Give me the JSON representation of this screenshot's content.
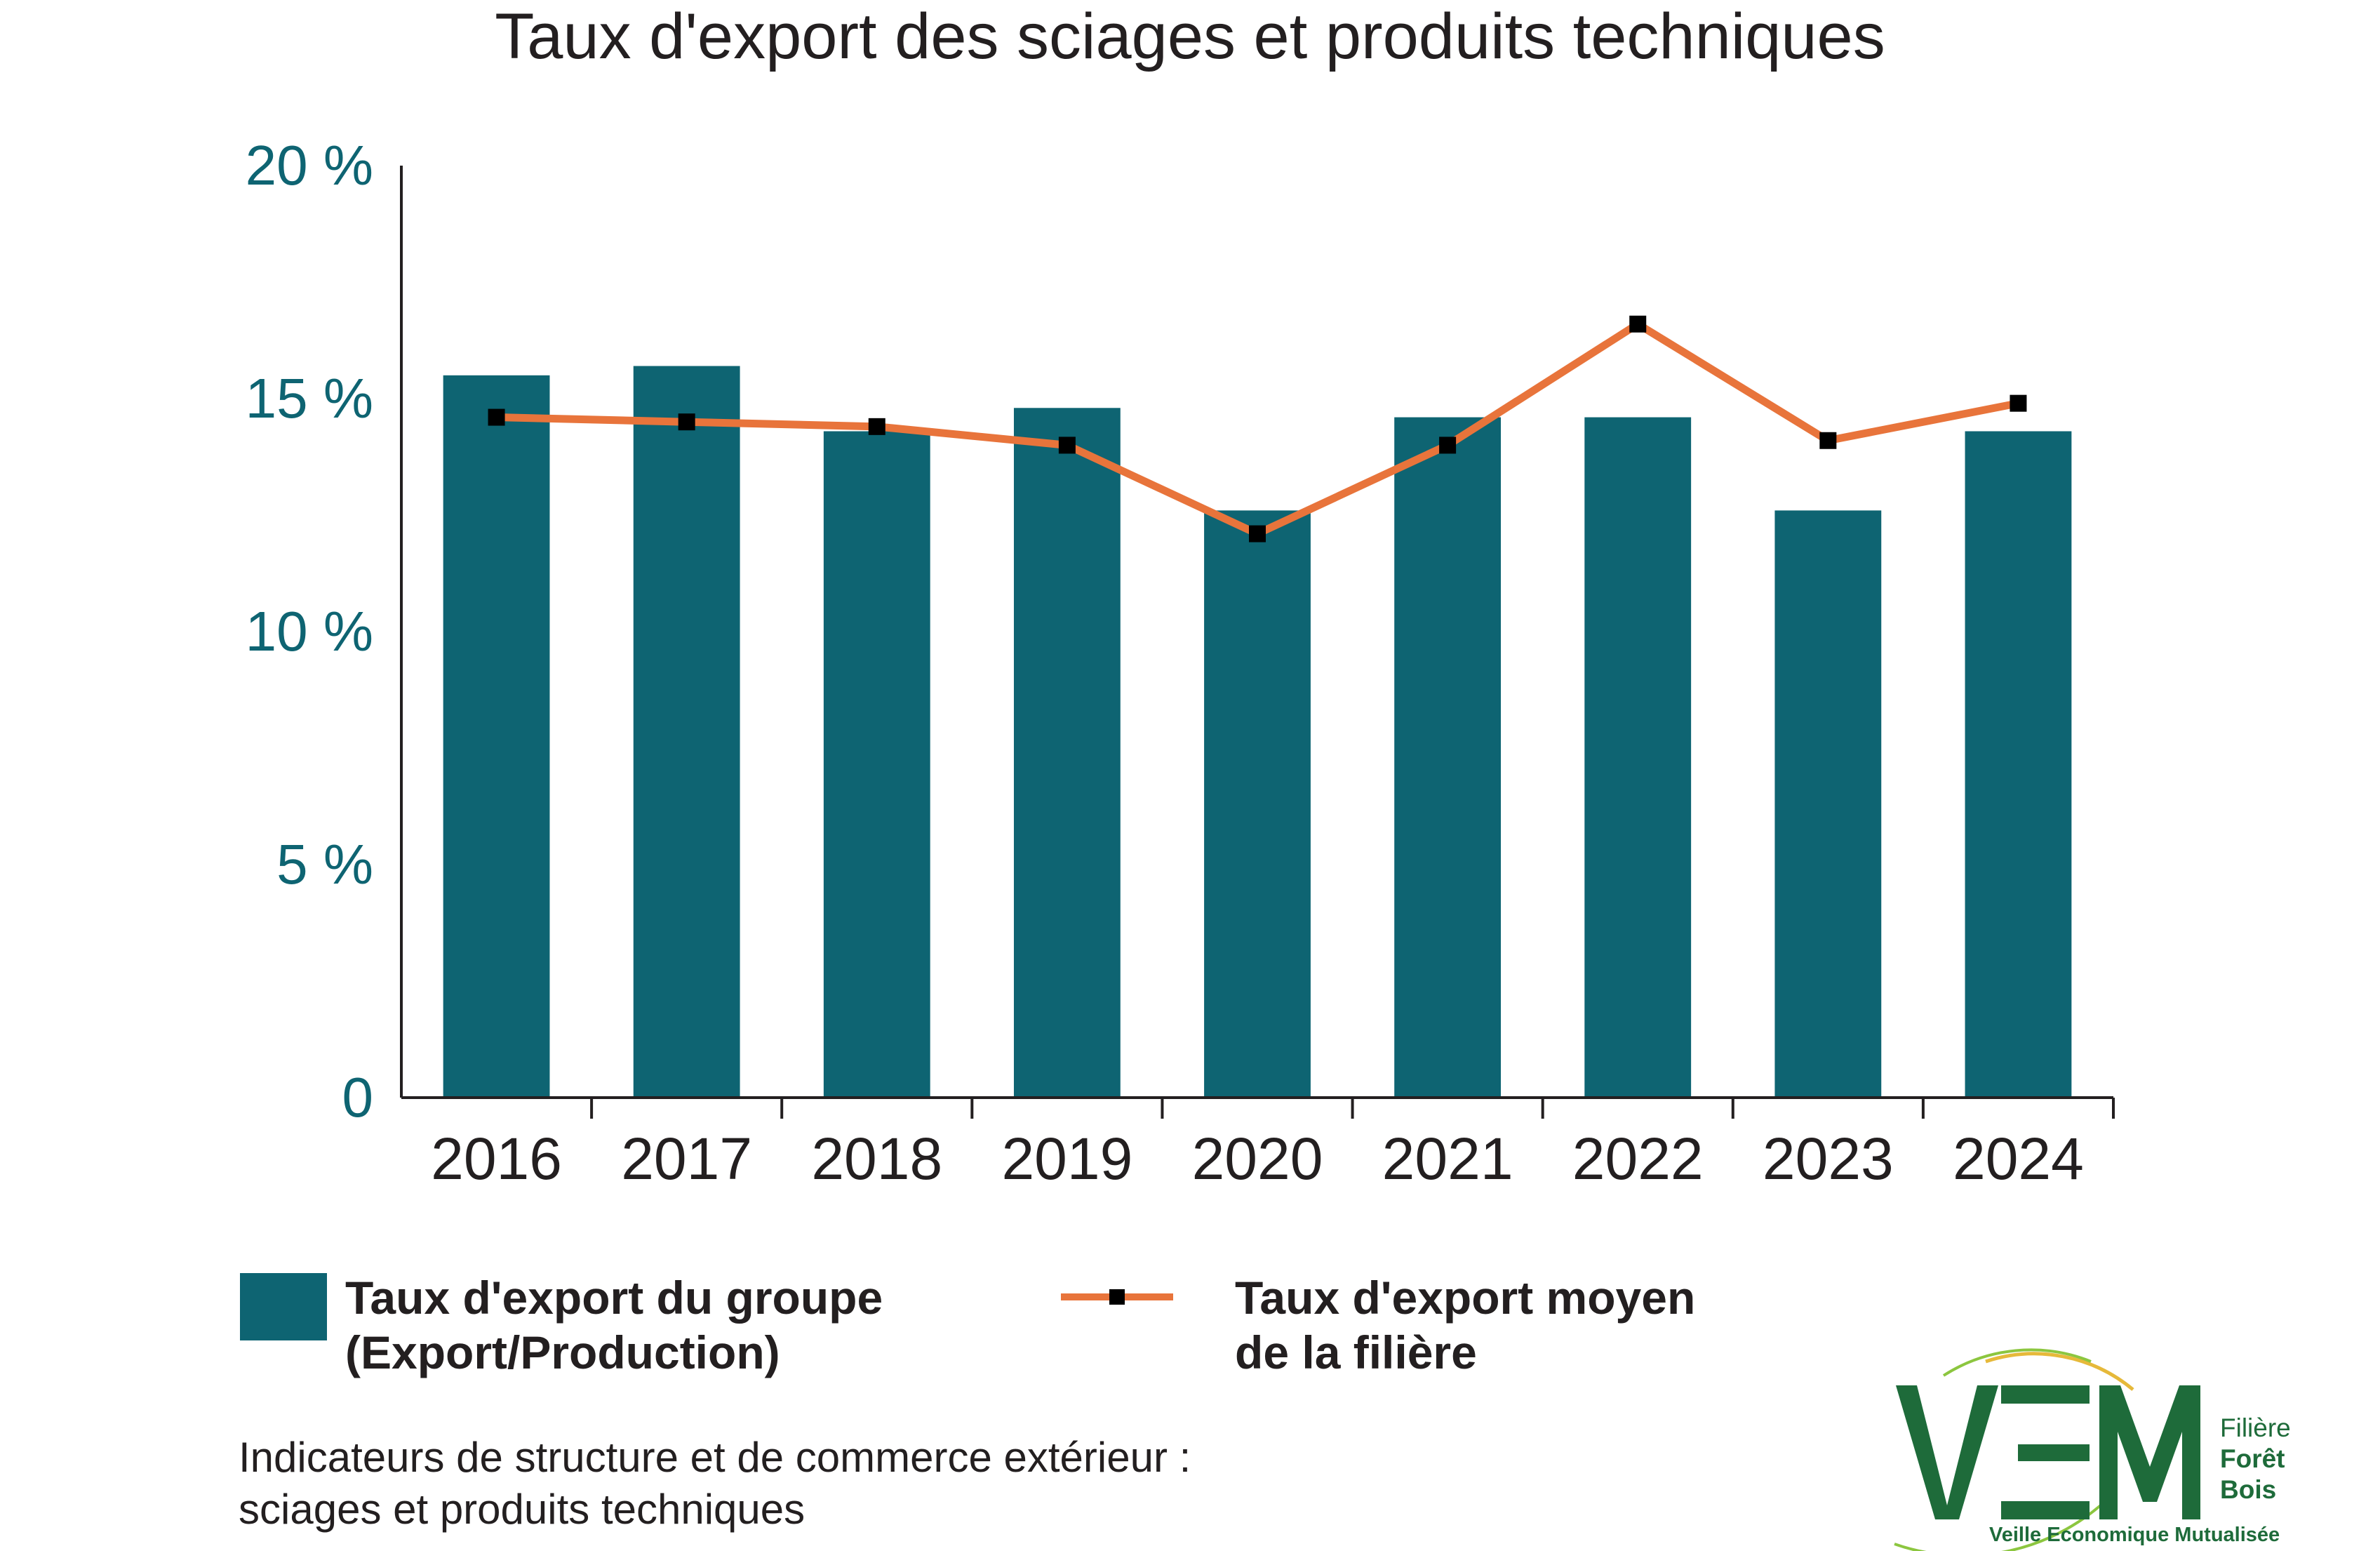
{
  "title": "Taux d'export des sciages et produits techniques",
  "colors": {
    "bar": "#0e6472",
    "line": "#e8743b",
    "marker": "#000000",
    "axis_text": "#0e6472",
    "logo_green": "#1e6b3a",
    "logo_yellow": "#e6b93a"
  },
  "chart_data": {
    "type": "bar",
    "categories": [
      "2016",
      "2017",
      "2018",
      "2019",
      "2020",
      "2021",
      "2022",
      "2023",
      "2024"
    ],
    "series": [
      {
        "name": "Taux d'export du groupe (Export/Production)",
        "type": "bar",
        "values": [
          15.5,
          15.7,
          14.3,
          14.8,
          12.6,
          14.6,
          14.6,
          12.6,
          14.3
        ]
      },
      {
        "name": "Taux d'export moyen de la filière",
        "type": "line",
        "values": [
          14.6,
          14.5,
          14.4,
          14.0,
          12.1,
          14.0,
          16.6,
          14.1,
          14.9
        ]
      }
    ],
    "ylim": [
      0,
      20
    ],
    "yticks": [
      {
        "value": 0,
        "label": "0"
      },
      {
        "value": 5,
        "label": "5 %"
      },
      {
        "value": 10,
        "label": "10 %"
      },
      {
        "value": 15,
        "label": "15 %"
      },
      {
        "value": 20,
        "label": "20 %"
      }
    ],
    "xlabel": "",
    "ylabel": "",
    "grid": false,
    "legend_position": "bottom"
  },
  "legend": {
    "bar_line1": "Taux d'export du groupe",
    "bar_line2": "(Export/Production)",
    "line_line1": "Taux d'export moyen",
    "line_line2": "de la filière"
  },
  "footer": {
    "line1": "Indicateurs de structure et de commerce extérieur :",
    "line2": "sciages et produits techniques"
  },
  "logo": {
    "letters": "VEM",
    "side_1": "Filière",
    "side_2": "Forêt",
    "side_3": "Bois",
    "tagline": "Veille Economique Mutualisée"
  }
}
